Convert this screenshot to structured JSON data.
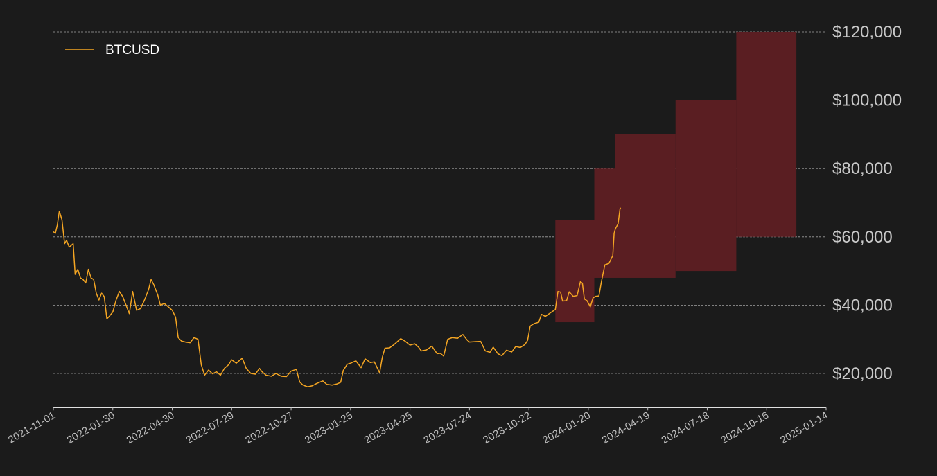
{
  "chart_data": {
    "type": "line",
    "title": "",
    "xlabel": "",
    "ylabel": "",
    "x_range": [
      "2021-11-01",
      "2025-01-14"
    ],
    "ylim": [
      10000,
      120000
    ],
    "grid": true,
    "legend_position": "top-left",
    "x_ticks": [
      "2021-11-01",
      "2022-01-30",
      "2022-04-30",
      "2022-07-29",
      "2022-10-27",
      "2023-01-25",
      "2023-04-25",
      "2023-07-24",
      "2023-10-22",
      "2024-01-20",
      "2024-04-19",
      "2024-07-18",
      "2024-10-16",
      "2025-01-14"
    ],
    "y_ticks": [
      {
        "value": 20000,
        "label": "$20,000"
      },
      {
        "value": 40000,
        "label": "$40,000"
      },
      {
        "value": 60000,
        "label": "$60,000"
      },
      {
        "value": 80000,
        "label": "$80,000"
      },
      {
        "value": 100000,
        "label": "$100,000"
      },
      {
        "value": 120000,
        "label": "$120,000"
      }
    ],
    "series": [
      {
        "name": "BTCUSD",
        "color": "#f5a623",
        "points": [
          [
            "2021-11-01",
            61500
          ],
          [
            "2021-11-04",
            61000
          ],
          [
            "2021-11-07",
            63500
          ],
          [
            "2021-11-10",
            67500
          ],
          [
            "2021-11-14",
            65000
          ],
          [
            "2021-11-18",
            58000
          ],
          [
            "2021-11-21",
            59000
          ],
          [
            "2021-11-25",
            57000
          ],
          [
            "2021-11-28",
            57500
          ],
          [
            "2021-12-01",
            58000
          ],
          [
            "2021-12-04",
            49000
          ],
          [
            "2021-12-08",
            50500
          ],
          [
            "2021-12-12",
            48000
          ],
          [
            "2021-12-16",
            47500
          ],
          [
            "2021-12-20",
            46500
          ],
          [
            "2021-12-24",
            50500
          ],
          [
            "2021-12-28",
            48000
          ],
          [
            "2022-01-01",
            47500
          ],
          [
            "2022-01-05",
            43500
          ],
          [
            "2022-01-09",
            41500
          ],
          [
            "2022-01-13",
            43500
          ],
          [
            "2022-01-17",
            42500
          ],
          [
            "2022-01-21",
            36000
          ],
          [
            "2022-01-25",
            36800
          ],
          [
            "2022-01-30",
            38000
          ],
          [
            "2022-02-04",
            41500
          ],
          [
            "2022-02-09",
            44000
          ],
          [
            "2022-02-14",
            42500
          ],
          [
            "2022-02-18",
            40500
          ],
          [
            "2022-02-24",
            37500
          ],
          [
            "2022-03-01",
            44000
          ],
          [
            "2022-03-07",
            38500
          ],
          [
            "2022-03-13",
            39000
          ],
          [
            "2022-03-19",
            41500
          ],
          [
            "2022-03-25",
            44500
          ],
          [
            "2022-03-29",
            47500
          ],
          [
            "2022-04-02",
            46000
          ],
          [
            "2022-04-08",
            43000
          ],
          [
            "2022-04-12",
            40000
          ],
          [
            "2022-04-18",
            40500
          ],
          [
            "2022-04-24",
            39500
          ],
          [
            "2022-04-30",
            38500
          ],
          [
            "2022-05-05",
            36500
          ],
          [
            "2022-05-09",
            30500
          ],
          [
            "2022-05-14",
            29500
          ],
          [
            "2022-05-20",
            29200
          ],
          [
            "2022-05-27",
            29000
          ],
          [
            "2022-06-02",
            30500
          ],
          [
            "2022-06-08",
            30000
          ],
          [
            "2022-06-13",
            22500
          ],
          [
            "2022-06-18",
            19500
          ],
          [
            "2022-06-24",
            21000
          ],
          [
            "2022-06-30",
            19900
          ],
          [
            "2022-07-06",
            20500
          ],
          [
            "2022-07-12",
            19500
          ],
          [
            "2022-07-18",
            21500
          ],
          [
            "2022-07-24",
            22500
          ],
          [
            "2022-07-29",
            24000
          ],
          [
            "2022-08-05",
            23000
          ],
          [
            "2022-08-14",
            24500
          ],
          [
            "2022-08-20",
            21500
          ],
          [
            "2022-08-27",
            20000
          ],
          [
            "2022-09-03",
            19800
          ],
          [
            "2022-09-09",
            21500
          ],
          [
            "2022-09-13",
            20500
          ],
          [
            "2022-09-19",
            19500
          ],
          [
            "2022-09-27",
            19200
          ],
          [
            "2022-10-04",
            20000
          ],
          [
            "2022-10-12",
            19200
          ],
          [
            "2022-10-20",
            19100
          ],
          [
            "2022-10-27",
            20700
          ],
          [
            "2022-11-04",
            21200
          ],
          [
            "2022-11-09",
            17500
          ],
          [
            "2022-11-14",
            16600
          ],
          [
            "2022-11-21",
            16100
          ],
          [
            "2022-11-28",
            16400
          ],
          [
            "2022-12-05",
            17100
          ],
          [
            "2022-12-14",
            17800
          ],
          [
            "2022-12-20",
            16800
          ],
          [
            "2022-12-28",
            16600
          ],
          [
            "2023-01-04",
            16900
          ],
          [
            "2023-01-10",
            17400
          ],
          [
            "2023-01-14",
            20900
          ],
          [
            "2023-01-20",
            22700
          ],
          [
            "2023-01-25",
            23000
          ],
          [
            "2023-02-02",
            23700
          ],
          [
            "2023-02-10",
            21700
          ],
          [
            "2023-02-16",
            24300
          ],
          [
            "2023-02-24",
            23200
          ],
          [
            "2023-03-02",
            23400
          ],
          [
            "2023-03-10",
            20200
          ],
          [
            "2023-03-14",
            24700
          ],
          [
            "2023-03-18",
            27400
          ],
          [
            "2023-03-25",
            27500
          ],
          [
            "2023-04-01",
            28500
          ],
          [
            "2023-04-11",
            30200
          ],
          [
            "2023-04-18",
            29400
          ],
          [
            "2023-04-25",
            28300
          ],
          [
            "2023-05-02",
            28700
          ],
          [
            "2023-05-08",
            27700
          ],
          [
            "2023-05-12",
            26600
          ],
          [
            "2023-05-20",
            26900
          ],
          [
            "2023-05-28",
            28000
          ],
          [
            "2023-06-05",
            25800
          ],
          [
            "2023-06-10",
            25900
          ],
          [
            "2023-06-15",
            25100
          ],
          [
            "2023-06-21",
            30000
          ],
          [
            "2023-06-28",
            30500
          ],
          [
            "2023-07-06",
            30300
          ],
          [
            "2023-07-14",
            31400
          ],
          [
            "2023-07-20",
            29900
          ],
          [
            "2023-07-24",
            29200
          ],
          [
            "2023-08-01",
            29300
          ],
          [
            "2023-08-10",
            29400
          ],
          [
            "2023-08-17",
            26600
          ],
          [
            "2023-08-24",
            26200
          ],
          [
            "2023-08-29",
            27700
          ],
          [
            "2023-09-05",
            25800
          ],
          [
            "2023-09-11",
            25200
          ],
          [
            "2023-09-18",
            26800
          ],
          [
            "2023-09-26",
            26300
          ],
          [
            "2023-10-02",
            27900
          ],
          [
            "2023-10-09",
            27600
          ],
          [
            "2023-10-16",
            28500
          ],
          [
            "2023-10-20",
            29700
          ],
          [
            "2023-10-24",
            33900
          ],
          [
            "2023-10-30",
            34600
          ],
          [
            "2023-11-06",
            35000
          ],
          [
            "2023-11-10",
            37300
          ],
          [
            "2023-11-16",
            36700
          ],
          [
            "2023-11-24",
            37800
          ],
          [
            "2023-12-01",
            38700
          ],
          [
            "2023-12-05",
            44000
          ],
          [
            "2023-12-09",
            43800
          ],
          [
            "2023-12-12",
            41200
          ],
          [
            "2023-12-18",
            41300
          ],
          [
            "2023-12-22",
            43900
          ],
          [
            "2023-12-28",
            42600
          ],
          [
            "2024-01-03",
            42800
          ],
          [
            "2024-01-08",
            46900
          ],
          [
            "2024-01-11",
            46400
          ],
          [
            "2024-01-14",
            41800
          ],
          [
            "2024-01-18",
            41300
          ],
          [
            "2024-01-23",
            39500
          ],
          [
            "2024-01-27",
            42100
          ],
          [
            "2024-01-31",
            42600
          ],
          [
            "2024-02-05",
            42700
          ],
          [
            "2024-02-09",
            47100
          ],
          [
            "2024-02-14",
            51800
          ],
          [
            "2024-02-20",
            52200
          ],
          [
            "2024-02-26",
            54500
          ],
          [
            "2024-02-28",
            61000
          ],
          [
            "2024-03-01",
            62400
          ],
          [
            "2024-03-05",
            63800
          ],
          [
            "2024-03-08",
            68300
          ],
          [
            "2024-03-09",
            68500
          ]
        ]
      }
    ],
    "shaded_regions": [
      {
        "x_start": "2023-12-01",
        "x_end": "2024-01-29",
        "y_low": 35000,
        "y_high": 65000
      },
      {
        "x_start": "2024-01-29",
        "x_end": "2024-02-29",
        "y_low": 48000,
        "y_high": 80000
      },
      {
        "x_start": "2024-02-29",
        "x_end": "2024-05-31",
        "y_low": 48000,
        "y_high": 90000
      },
      {
        "x_start": "2024-05-31",
        "x_end": "2024-08-31",
        "y_low": 50000,
        "y_high": 100000
      },
      {
        "x_start": "2024-08-31",
        "x_end": "2024-11-30",
        "y_low": 60000,
        "y_high": 120000
      }
    ],
    "region_color": "#5a1e22"
  }
}
